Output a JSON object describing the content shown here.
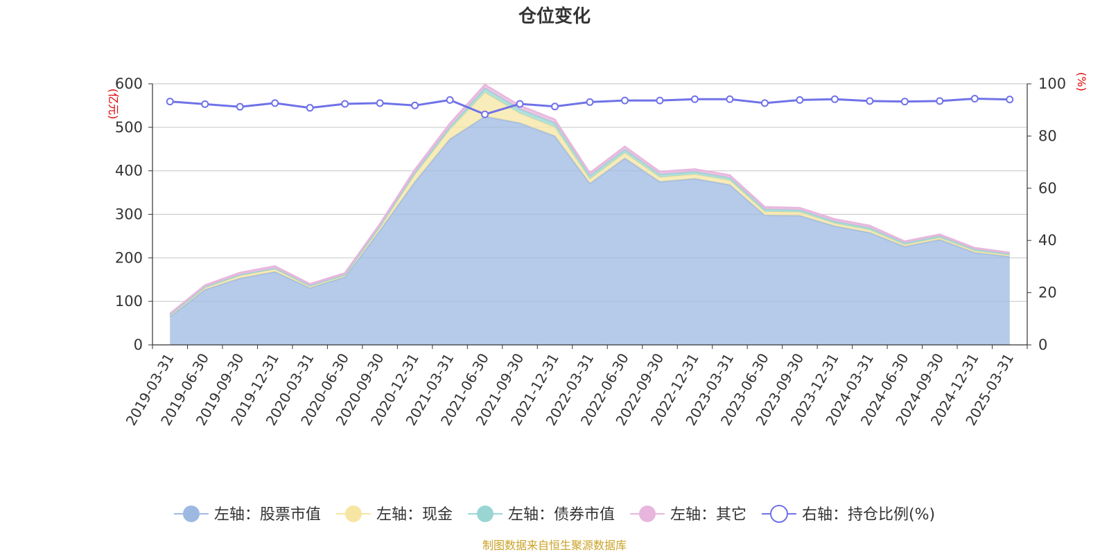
{
  "chart_data": {
    "type": "area",
    "title": "仓位变化",
    "left_unit": "(亿元)",
    "right_unit": "(%)",
    "x": [
      "2019-03-31",
      "2019-06-30",
      "2019-09-30",
      "2019-12-31",
      "2020-03-31",
      "2020-06-30",
      "2020-09-30",
      "2020-12-31",
      "2021-03-31",
      "2021-06-30",
      "2021-09-30",
      "2021-12-31",
      "2022-03-31",
      "2022-06-30",
      "2022-09-30",
      "2022-12-31",
      "2023-03-31",
      "2023-06-30",
      "2023-09-30",
      "2023-12-31",
      "2024-03-31",
      "2024-06-30",
      "2024-09-30",
      "2024-12-31",
      "2025-03-31"
    ],
    "ylim_left": [
      0,
      600
    ],
    "yticks_left": [
      0,
      100,
      200,
      300,
      400,
      500,
      600
    ],
    "ylim_right": [
      0,
      100
    ],
    "yticks_right": [
      0,
      20,
      40,
      60,
      80,
      100
    ],
    "grid": true,
    "stacked": true,
    "series": [
      {
        "name": "左轴：股票市值",
        "axis": "left",
        "kind": "area",
        "color": "#9db9e2",
        "values": [
          65,
          127,
          153,
          168,
          131,
          156,
          263,
          375,
          473,
          525,
          510,
          480,
          371,
          429,
          375,
          382,
          368,
          298,
          297,
          273,
          258,
          226,
          242,
          212,
          203
        ]
      },
      {
        "name": "左轴：现金",
        "axis": "left",
        "kind": "area",
        "color": "#f7e5a4",
        "values": [
          3,
          5,
          6,
          6,
          4,
          4,
          8,
          16,
          22,
          55,
          22,
          20,
          10,
          12,
          10,
          10,
          10,
          8,
          8,
          6,
          6,
          4,
          4,
          4,
          3
        ]
      },
      {
        "name": "左轴：债券市值",
        "axis": "left",
        "kind": "area",
        "color": "#99d6d3",
        "values": [
          1,
          1,
          2,
          2,
          1,
          1,
          2,
          5,
          6,
          10,
          10,
          10,
          8,
          8,
          7,
          6,
          6,
          6,
          5,
          5,
          5,
          4,
          4,
          3,
          3
        ]
      },
      {
        "name": "左轴：其它",
        "axis": "left",
        "kind": "area",
        "color": "#e8b6dd",
        "values": [
          3,
          4,
          5,
          5,
          4,
          4,
          5,
          7,
          8,
          8,
          8,
          8,
          6,
          7,
          6,
          6,
          6,
          5,
          5,
          5,
          5,
          4,
          4,
          4,
          3
        ]
      },
      {
        "name": "右轴：持仓比例(%)",
        "axis": "right",
        "kind": "line",
        "color": "#6f72e8",
        "values": [
          93.2,
          92.2,
          91.2,
          92.6,
          90.8,
          92.3,
          92.6,
          91.7,
          93.8,
          88.3,
          92.3,
          91.3,
          93.0,
          93.6,
          93.6,
          94.1,
          94.1,
          92.6,
          93.8,
          94.1,
          93.4,
          93.2,
          93.4,
          94.3,
          94.0
        ]
      }
    ],
    "legend_position": "bottom",
    "source_note": "制图数据来自恒生聚源数据库"
  }
}
